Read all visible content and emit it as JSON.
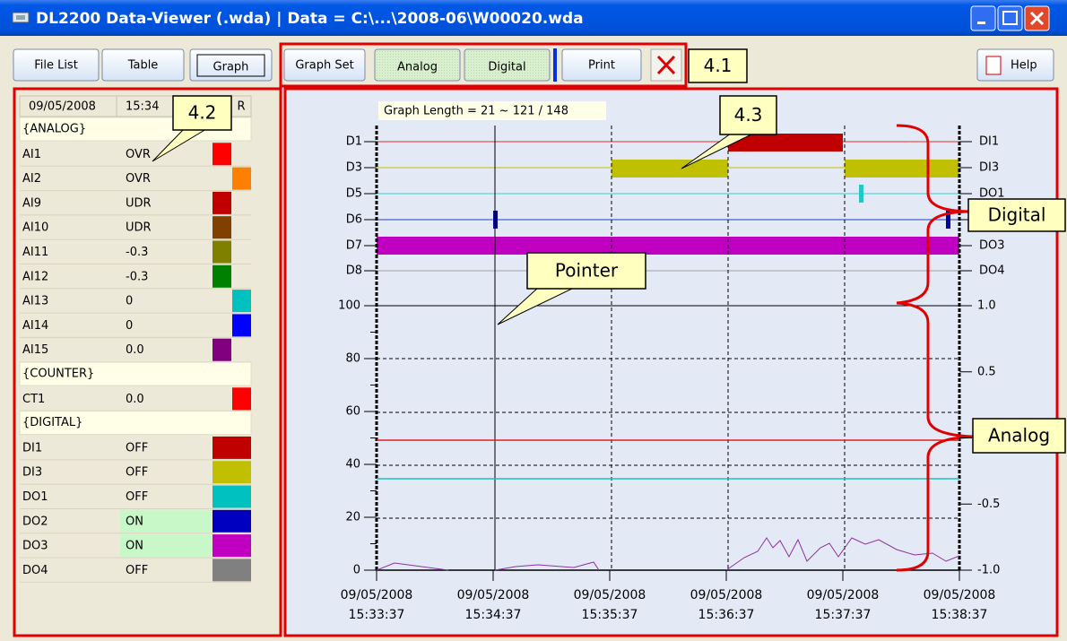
{
  "window": {
    "title": "DL2200 Data-Viewer (.wda) | Data = C:\\...\\2008-06\\W00020.wda"
  },
  "toolbar": {
    "buttons": [
      "File List",
      "Table",
      "Graph",
      "Graph Set",
      "Analog",
      "Digital",
      "Print"
    ],
    "help": "Help"
  },
  "channel_panel": {
    "header": [
      "09/05/2008",
      "15:34",
      "R"
    ],
    "rows": [
      {
        "section": "{ANALOG}"
      },
      {
        "name": "AI1",
        "value": "OVR",
        "color": "#ff0000"
      },
      {
        "name": "AI2",
        "value": "OVR",
        "color": "#ff8000"
      },
      {
        "name": "AI9",
        "value": "UDR",
        "color": "#c00000"
      },
      {
        "name": "AI10",
        "value": "UDR",
        "color": "#804000"
      },
      {
        "name": "AI11",
        "value": "-0.3",
        "color": "#808000"
      },
      {
        "name": "AI12",
        "value": "-0.3",
        "color": "#008000"
      },
      {
        "name": "AI13",
        "value": "0",
        "color": "#00c0c0"
      },
      {
        "name": "AI14",
        "value": "0",
        "color": "#0000ff"
      },
      {
        "name": "AI15",
        "value": "0.0",
        "color": "#800080"
      },
      {
        "section": "{COUNTER}"
      },
      {
        "name": "CT1",
        "value": "0.0",
        "color": "#ff0000"
      },
      {
        "section": "{DIGITAL}"
      },
      {
        "name": "DI1",
        "value": "OFF",
        "color": "#c00000"
      },
      {
        "name": "DI3",
        "value": "OFF",
        "color": "#c0c000"
      },
      {
        "name": "DO1",
        "value": "OFF",
        "color": "#00c0c0"
      },
      {
        "name": "DO2",
        "value": "ON",
        "color": "#0000c0"
      },
      {
        "name": "DO3",
        "value": "ON",
        "color": "#c000c0"
      },
      {
        "name": "DO4",
        "value": "OFF",
        "color": "#808080"
      }
    ]
  },
  "graph": {
    "length_label": "Graph Length = 21 ~ 121 / 148",
    "digital_left": [
      "D1",
      "D3",
      "D5",
      "D6",
      "D7",
      "D8"
    ],
    "digital_right": [
      "DI1",
      "DI3",
      "DO1",
      null,
      "DO3",
      "DO4"
    ],
    "analog_left": [
      100,
      80,
      60,
      40,
      20,
      0
    ],
    "analog_right": [
      "1.0",
      "0.5",
      null,
      "-0.5",
      "-1.0"
    ],
    "x_labels": [
      {
        "date": "09/05/2008",
        "time": "15:33:37"
      },
      {
        "date": "09/05/2008",
        "time": "15:34:37"
      },
      {
        "date": "09/05/2008",
        "time": "15:35:37"
      },
      {
        "date": "09/05/2008",
        "time": "15:36:37"
      },
      {
        "date": "09/05/2008",
        "time": "15:37:37"
      },
      {
        "date": "09/05/2008",
        "time": "15:38:37"
      }
    ]
  },
  "callouts": {
    "toolbar": "4.1",
    "panel": "4.2",
    "graph": "4.3",
    "pointer": "Pointer",
    "digital": "Digital",
    "analog": "Analog"
  }
}
